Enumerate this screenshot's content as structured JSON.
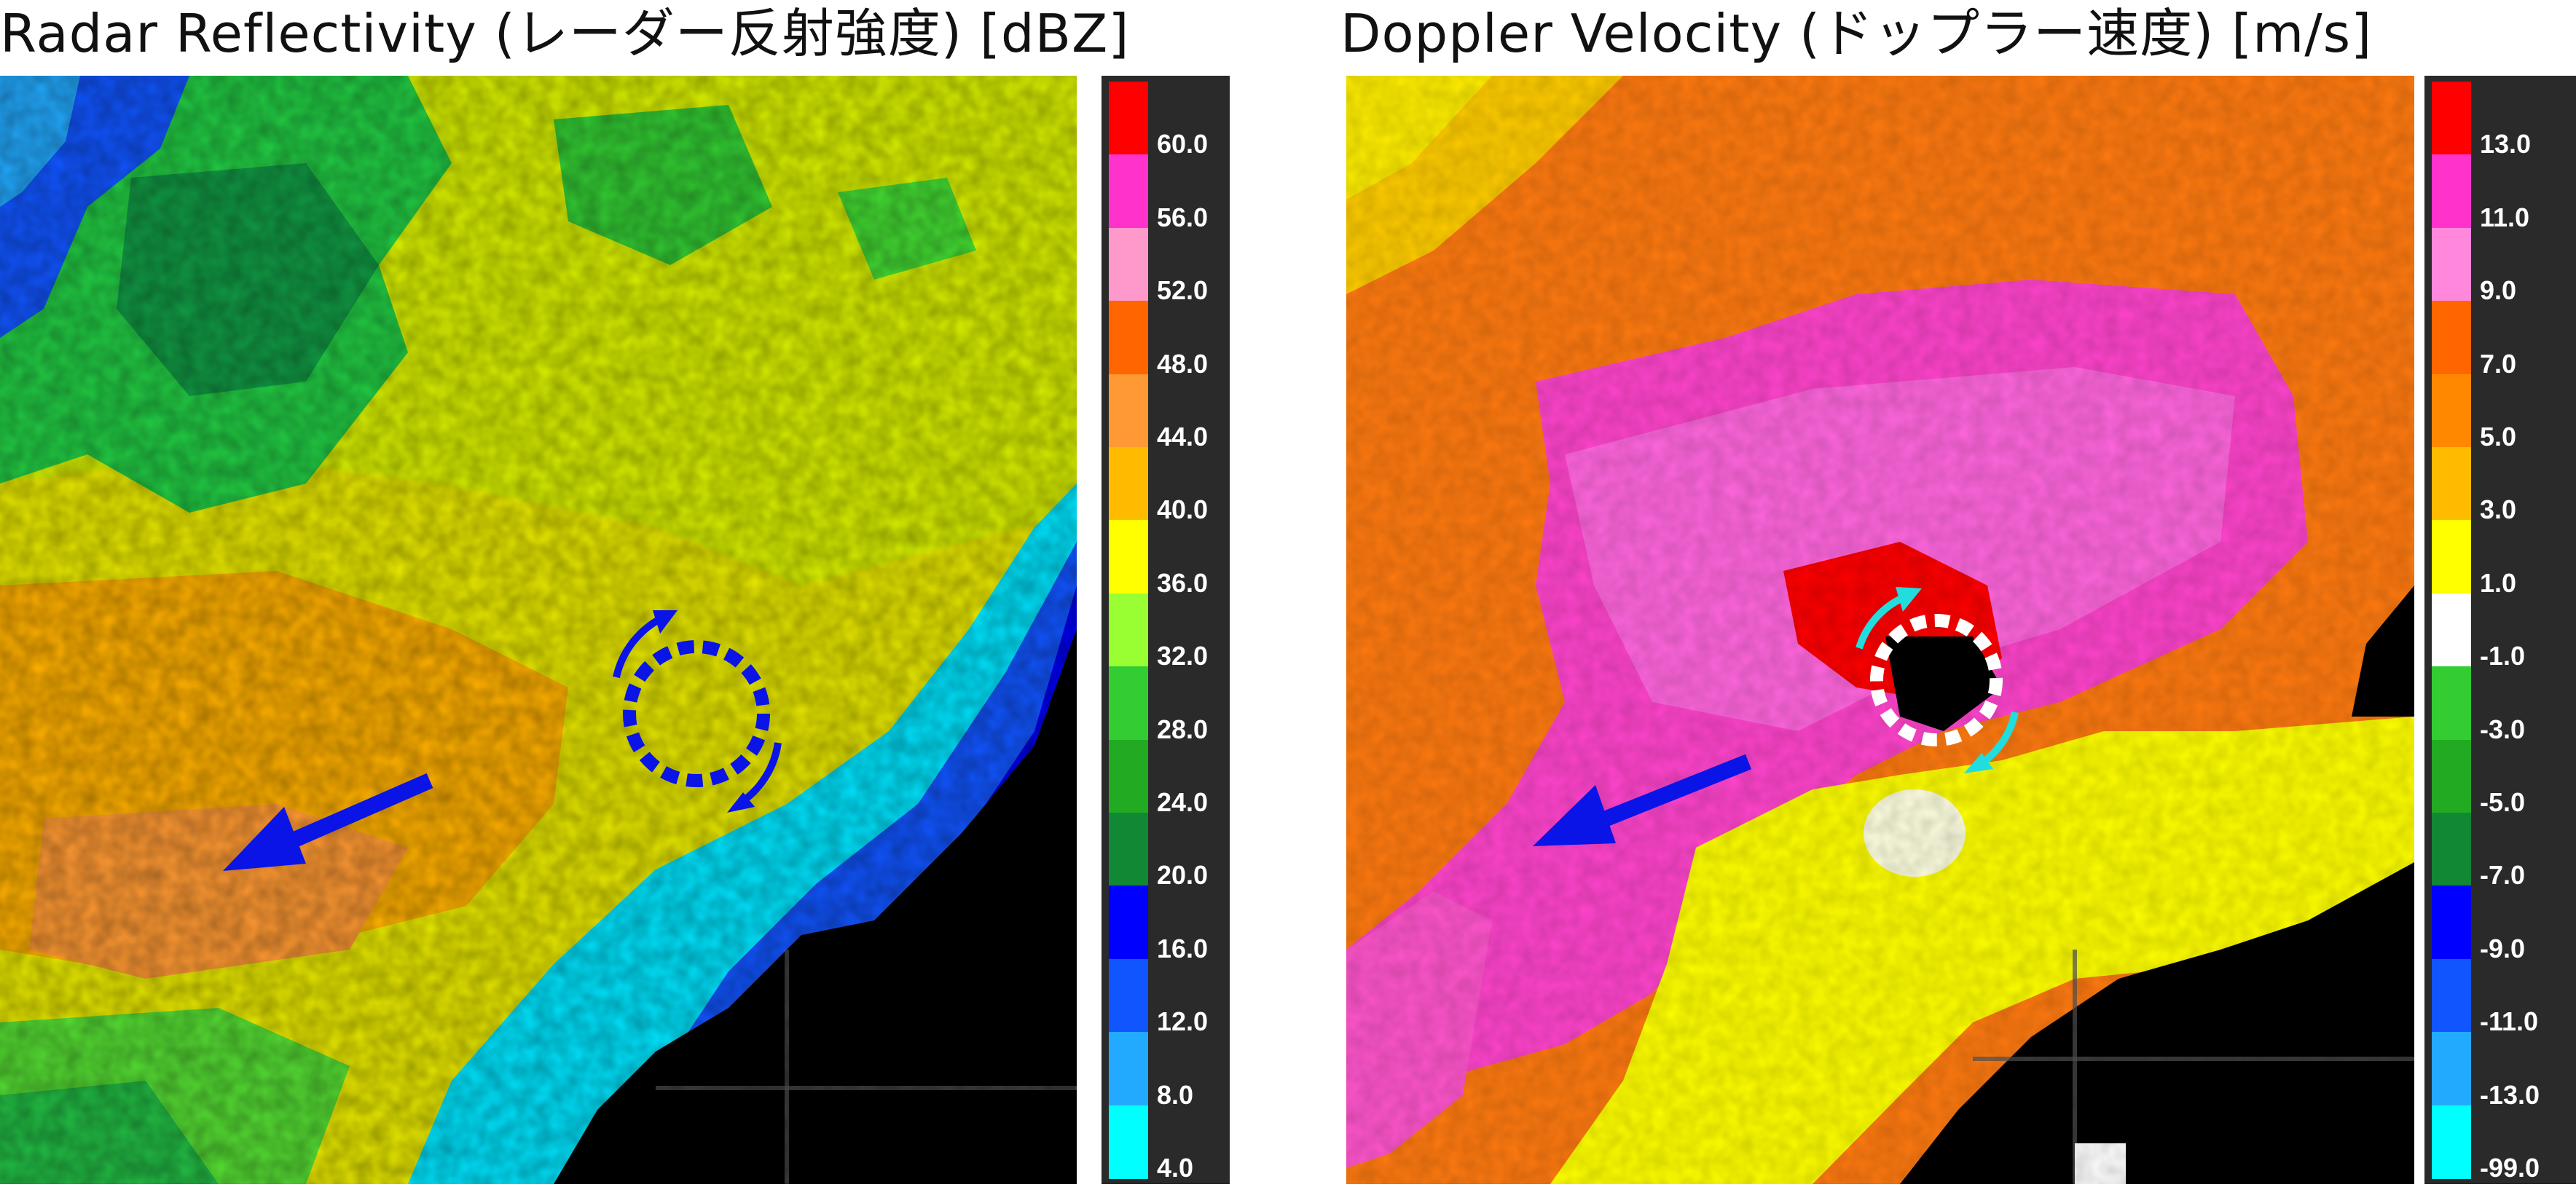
{
  "reflectivity": {
    "title": "Radar Reflectivity (レーダー反射強度) [dBZ]",
    "ticks": [
      "60.0",
      "56.0",
      "52.0",
      "48.0",
      "44.0",
      "40.0",
      "36.0",
      "32.0",
      "28.0",
      "24.0",
      "20.0",
      "16.0",
      "12.0",
      "8.0",
      "4.0"
    ],
    "colors": [
      "#ff0000",
      "#ff33cc",
      "#ff99cc",
      "#ff6600",
      "#ff9933",
      "#ffbb00",
      "#ffff00",
      "#99ff33",
      "#33cc33",
      "#22aa22",
      "#118833",
      "#0000ff",
      "#1155ff",
      "#22aaff",
      "#00ffff"
    ],
    "motion_arrow_icon": "blue-arrow-icon",
    "rotation_marker_icon": "dashed-circle-icon"
  },
  "velocity": {
    "title": "Doppler Velocity (ドップラー速度) [m/s]",
    "ticks": [
      "13.0",
      "11.0",
      "9.0",
      "7.0",
      "5.0",
      "3.0",
      "1.0",
      "-1.0",
      "-3.0",
      "-5.0",
      "-7.0",
      "-9.0",
      "-11.0",
      "-13.0",
      "-99.0"
    ],
    "colors": [
      "#ff0000",
      "#ff33cc",
      "#ff88dd",
      "#ff6600",
      "#ff8800",
      "#ffbb00",
      "#ffff00",
      "#ffffff",
      "#33cc33",
      "#22aa22",
      "#118833",
      "#0000ff",
      "#1155ff",
      "#22aaff",
      "#00ffff"
    ],
    "motion_arrow_icon": "blue-arrow-icon",
    "rotation_marker_icon": "dashed-circle-icon"
  }
}
